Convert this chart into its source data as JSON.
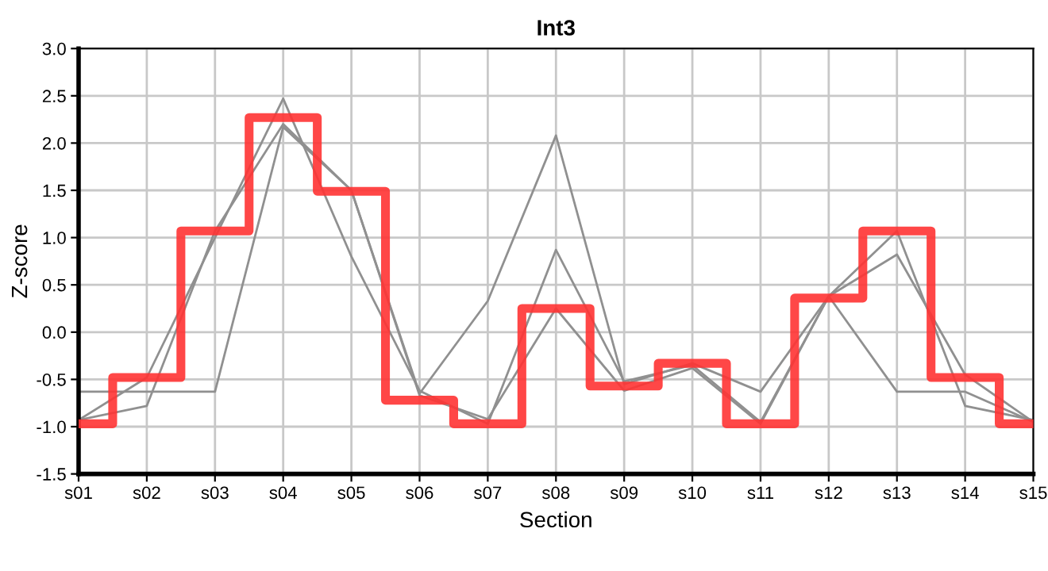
{
  "chart_data": {
    "type": "line",
    "title": "Int3",
    "xlabel": "Section",
    "ylabel": "Z-score",
    "categories": [
      "s01",
      "s02",
      "s03",
      "s04",
      "s05",
      "s06",
      "s07",
      "s08",
      "s09",
      "s10",
      "s11",
      "s12",
      "s13",
      "s14",
      "s15"
    ],
    "series": [
      {
        "color": "#909090",
        "values": [
          -0.63,
          -0.63,
          -0.63,
          2.17,
          1.5,
          -0.65,
          0.33,
          2.08,
          -0.55,
          -0.33,
          -0.63,
          0.38,
          -0.63,
          -0.63,
          -0.95
        ]
      },
      {
        "color": "#909090",
        "values": [
          -0.93,
          -0.48,
          1.0,
          2.47,
          0.8,
          -0.62,
          -0.97,
          0.87,
          -0.52,
          -0.35,
          -0.95,
          0.38,
          0.82,
          -0.45,
          -0.95
        ]
      },
      {
        "color": "#909090",
        "values": [
          -0.93,
          -0.78,
          1.07,
          2.2,
          1.5,
          -0.67,
          -0.92,
          0.25,
          -0.62,
          -0.38,
          -0.97,
          0.38,
          1.07,
          -0.78,
          -0.93
        ]
      },
      {
        "type": "step",
        "color": "#ff3333",
        "values": [
          -0.97,
          -0.48,
          1.07,
          2.27,
          1.49,
          -0.72,
          -0.97,
          0.25,
          -0.57,
          -0.33,
          -0.97,
          0.36,
          1.07,
          -0.48,
          -0.97
        ]
      }
    ],
    "ylim": [
      -1.5,
      3.0
    ],
    "yticks": [
      {
        "value": -1.5,
        "label": "-1.5"
      },
      {
        "value": -1.0,
        "label": "-1.0"
      },
      {
        "value": -0.5,
        "label": "-0.5"
      },
      {
        "value": 0.0,
        "label": "0.0"
      },
      {
        "value": 0.5,
        "label": "0.5"
      },
      {
        "value": 1.0,
        "label": "1.0"
      },
      {
        "value": 1.5,
        "label": "1.5"
      },
      {
        "value": 2.0,
        "label": "2.0"
      },
      {
        "value": 2.5,
        "label": "2.5"
      },
      {
        "value": 3.0,
        "label": "3.0"
      }
    ],
    "grid": true
  }
}
